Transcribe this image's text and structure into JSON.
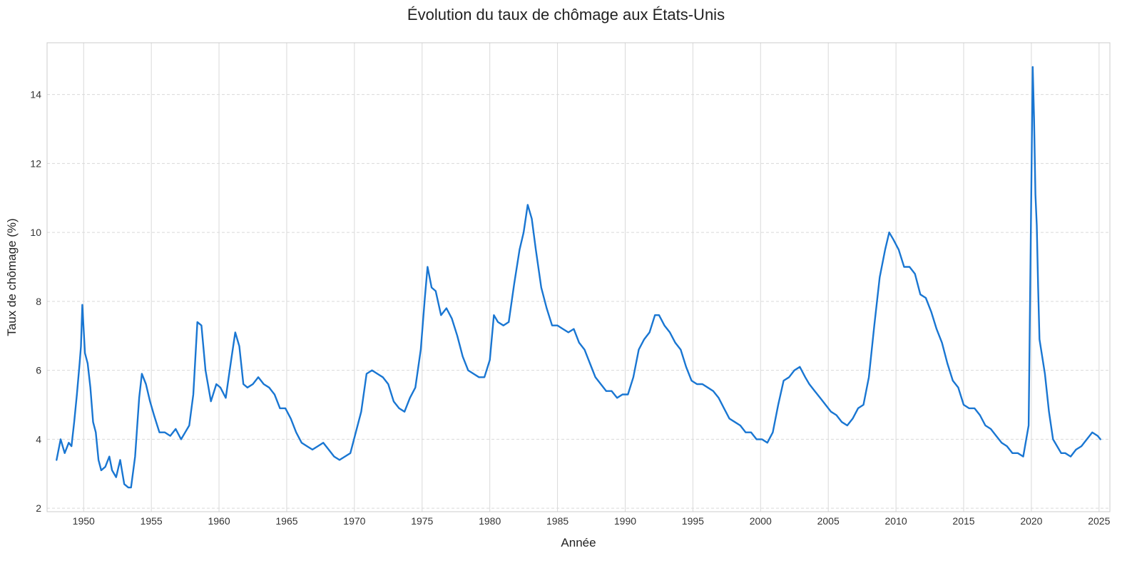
{
  "chart_data": {
    "type": "line",
    "title": "Évolution du taux de chômage aux États-Unis",
    "xlabel": "Année",
    "ylabel": "Taux de chômage (%)",
    "xlim": [
      1947.3,
      2025.8
    ],
    "ylim": [
      1.9,
      15.5
    ],
    "x_ticks": [
      1950,
      1955,
      1960,
      1965,
      1970,
      1975,
      1980,
      1985,
      1990,
      1995,
      2000,
      2005,
      2010,
      2015,
      2020,
      2025
    ],
    "y_ticks": [
      2,
      4,
      6,
      8,
      10,
      12,
      14
    ],
    "grid": true,
    "series": [
      {
        "color": "#1976d2",
        "x": [
          1948.0,
          1948.3,
          1948.6,
          1948.9,
          1949.1,
          1949.3,
          1949.5,
          1949.7,
          1949.8,
          1949.9,
          1950.1,
          1950.3,
          1950.5,
          1950.7,
          1950.9,
          1951.1,
          1951.3,
          1951.6,
          1951.9,
          1952.1,
          1952.4,
          1952.7,
          1953.0,
          1953.3,
          1953.5,
          1953.8,
          1954.1,
          1954.3,
          1954.6,
          1954.9,
          1955.2,
          1955.6,
          1956.0,
          1956.4,
          1956.8,
          1957.2,
          1957.5,
          1957.8,
          1958.1,
          1958.4,
          1958.7,
          1959.0,
          1959.4,
          1959.8,
          1960.1,
          1960.5,
          1960.9,
          1961.2,
          1961.5,
          1961.8,
          1962.1,
          1962.5,
          1962.9,
          1963.3,
          1963.7,
          1964.1,
          1964.5,
          1964.9,
          1965.3,
          1965.7,
          1966.1,
          1966.5,
          1966.9,
          1967.3,
          1967.7,
          1968.1,
          1968.5,
          1968.9,
          1969.3,
          1969.7,
          1970.1,
          1970.5,
          1970.9,
          1971.3,
          1971.7,
          1972.1,
          1972.5,
          1972.9,
          1973.3,
          1973.7,
          1974.1,
          1974.5,
          1974.9,
          1975.2,
          1975.4,
          1975.7,
          1976.0,
          1976.4,
          1976.8,
          1977.2,
          1977.6,
          1978.0,
          1978.4,
          1978.8,
          1979.2,
          1979.6,
          1980.0,
          1980.3,
          1980.6,
          1981.0,
          1981.4,
          1981.8,
          1982.2,
          1982.5,
          1982.8,
          1983.1,
          1983.4,
          1983.8,
          1984.2,
          1984.6,
          1985.0,
          1985.4,
          1985.8,
          1986.2,
          1986.6,
          1987.0,
          1987.4,
          1987.8,
          1988.2,
          1988.6,
          1989.0,
          1989.4,
          1989.8,
          1990.2,
          1990.6,
          1991.0,
          1991.4,
          1991.8,
          1992.2,
          1992.5,
          1992.9,
          1993.3,
          1993.7,
          1994.1,
          1994.5,
          1994.9,
          1995.3,
          1995.7,
          1996.1,
          1996.5,
          1996.9,
          1997.3,
          1997.7,
          1998.1,
          1998.5,
          1998.9,
          1999.3,
          1999.7,
          2000.1,
          2000.5,
          2000.9,
          2001.3,
          2001.7,
          2002.1,
          2002.5,
          2002.9,
          2003.3,
          2003.6,
          2004.0,
          2004.4,
          2004.8,
          2005.2,
          2005.6,
          2006.0,
          2006.4,
          2006.8,
          2007.2,
          2007.6,
          2008.0,
          2008.4,
          2008.8,
          2009.2,
          2009.5,
          2009.8,
          2010.2,
          2010.6,
          2011.0,
          2011.4,
          2011.8,
          2012.2,
          2012.6,
          2013.0,
          2013.4,
          2013.8,
          2014.2,
          2014.6,
          2015.0,
          2015.4,
          2015.8,
          2016.2,
          2016.6,
          2017.0,
          2017.4,
          2017.8,
          2018.2,
          2018.6,
          2019.0,
          2019.4,
          2019.8,
          2020.1,
          2020.2,
          2020.3,
          2020.4,
          2020.5,
          2020.6,
          2020.8,
          2021.0,
          2021.3,
          2021.6,
          2021.9,
          2022.2,
          2022.5,
          2022.9,
          2023.3,
          2023.7,
          2024.1,
          2024.5,
          2024.9,
          2025.1
        ],
        "y": [
          3.4,
          4.0,
          3.6,
          3.9,
          3.8,
          4.5,
          5.3,
          6.2,
          6.7,
          7.9,
          6.5,
          6.2,
          5.5,
          4.5,
          4.2,
          3.4,
          3.1,
          3.2,
          3.5,
          3.1,
          2.9,
          3.4,
          2.7,
          2.6,
          2.6,
          3.5,
          5.2,
          5.9,
          5.6,
          5.1,
          4.7,
          4.2,
          4.2,
          4.1,
          4.3,
          4.0,
          4.2,
          4.4,
          5.3,
          7.4,
          7.3,
          6.0,
          5.1,
          5.6,
          5.5,
          5.2,
          6.3,
          7.1,
          6.7,
          5.6,
          5.5,
          5.6,
          5.8,
          5.6,
          5.5,
          5.3,
          4.9,
          4.9,
          4.6,
          4.2,
          3.9,
          3.8,
          3.7,
          3.8,
          3.9,
          3.7,
          3.5,
          3.4,
          3.5,
          3.6,
          4.2,
          4.8,
          5.9,
          6.0,
          5.9,
          5.8,
          5.6,
          5.1,
          4.9,
          4.8,
          5.2,
          5.5,
          6.6,
          8.1,
          9.0,
          8.4,
          8.3,
          7.6,
          7.8,
          7.5,
          7.0,
          6.4,
          6.0,
          5.9,
          5.8,
          5.8,
          6.3,
          7.6,
          7.4,
          7.3,
          7.4,
          8.5,
          9.5,
          10.0,
          10.8,
          10.4,
          9.5,
          8.4,
          7.8,
          7.3,
          7.3,
          7.2,
          7.1,
          7.2,
          6.8,
          6.6,
          6.2,
          5.8,
          5.6,
          5.4,
          5.4,
          5.2,
          5.3,
          5.3,
          5.8,
          6.6,
          6.9,
          7.1,
          7.6,
          7.6,
          7.3,
          7.1,
          6.8,
          6.6,
          6.1,
          5.7,
          5.6,
          5.6,
          5.5,
          5.4,
          5.2,
          4.9,
          4.6,
          4.5,
          4.4,
          4.2,
          4.2,
          4.0,
          4.0,
          3.9,
          4.2,
          5.0,
          5.7,
          5.8,
          6.0,
          6.1,
          5.8,
          5.6,
          5.4,
          5.2,
          5.0,
          4.8,
          4.7,
          4.5,
          4.4,
          4.6,
          4.9,
          5.0,
          5.8,
          7.3,
          8.7,
          9.5,
          10.0,
          9.8,
          9.5,
          9.0,
          9.0,
          8.8,
          8.2,
          8.1,
          7.7,
          7.2,
          6.8,
          6.2,
          5.7,
          5.5,
          5.0,
          4.9,
          4.9,
          4.7,
          4.4,
          4.3,
          4.1,
          3.9,
          3.8,
          3.6,
          3.6,
          3.5,
          4.4,
          14.8,
          13.3,
          11.1,
          10.2,
          8.4,
          6.9,
          6.4,
          5.9,
          4.8,
          4.0,
          3.8,
          3.6,
          3.6,
          3.5,
          3.7,
          3.8,
          4.0,
          4.2,
          4.1,
          4.0
        ]
      }
    ]
  }
}
